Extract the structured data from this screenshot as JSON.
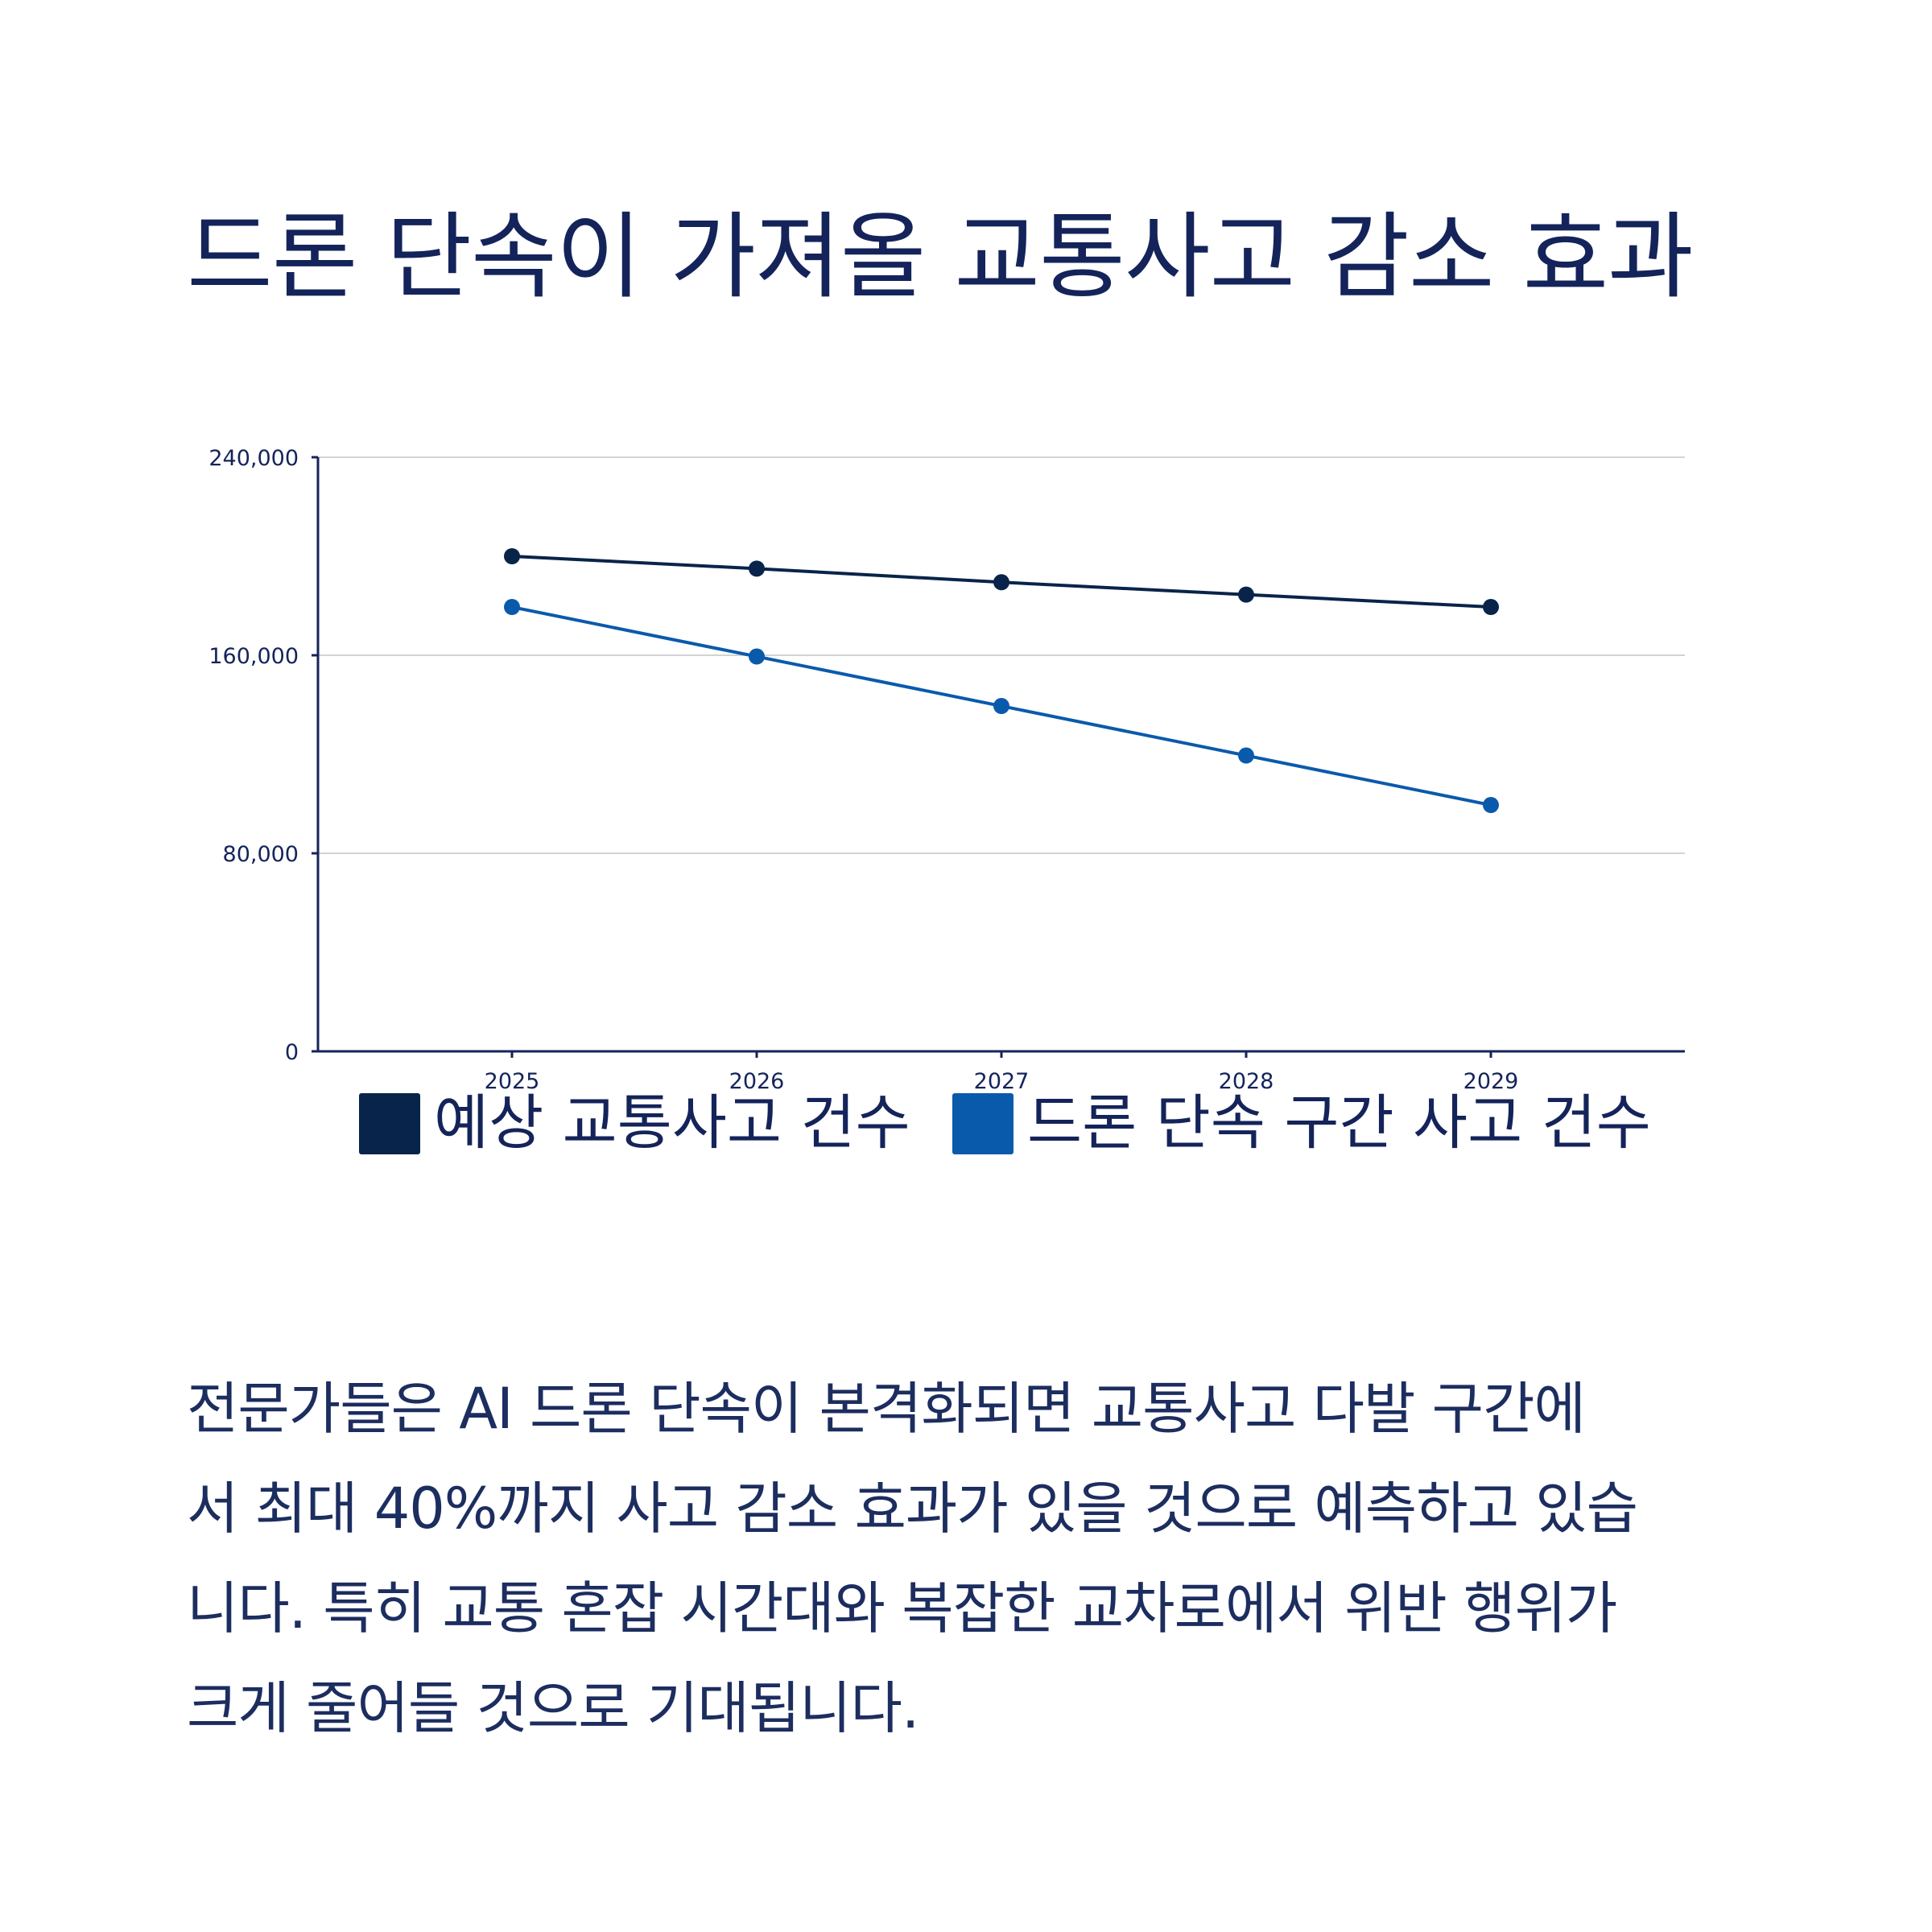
{
  "title": "드론 단속이 가져올 교통사고 감소 효과",
  "colors": {
    "text": "#14245a",
    "axis": "#14245a",
    "grid": "#d3d3d3",
    "series_dark": "#08244a",
    "series_blue": "#0a5aac"
  },
  "chart_data": {
    "type": "line",
    "title": "",
    "xlabel": "",
    "ylabel": "",
    "categories": [
      "2025",
      "2026",
      "2027",
      "2028",
      "2029"
    ],
    "y_ticks": [
      "0",
      "80,000",
      "160,000",
      "240,000"
    ],
    "ylim": [
      0,
      240000
    ],
    "grid": true,
    "legend_position": "bottom",
    "series": [
      {
        "name": "예상 교통사고 건수",
        "color": "#08244a",
        "values": [
          200000,
          195000,
          189500,
          184500,
          179500
        ]
      },
      {
        "name": "드론 단속 구간 사고 건수",
        "color": "#0a5aac",
        "values": [
          179500,
          159500,
          139500,
          119500,
          99500
        ]
      }
    ]
  },
  "paragraph": {
    "lines": [
      "전문가들은 AI 드론 단속이 본격화되면 교통사고 다발 구간에",
      "서 최대 40%까지 사고 감소 효과가 있을 것으로 예측하고 있습",
      "니다. 특히 교통 혼잡 시간대와 복잡한 교차로에서 위반 행위가",
      "크게 줄어들 것으로 기대됩니다."
    ]
  }
}
